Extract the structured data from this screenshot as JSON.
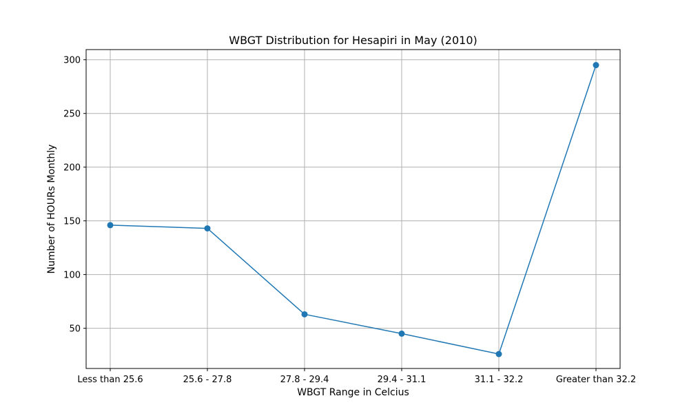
{
  "chart_data": {
    "type": "line",
    "title": "WBGT Distribution for Hesapiri in May (2010)",
    "xlabel": "WBGT Range in Celcius",
    "ylabel": "Number of HOURs Monthly",
    "categories": [
      "Less than 25.6",
      "25.6 - 27.8",
      "27.8 - 29.4",
      "29.4 - 31.1",
      "31.1 - 32.2",
      "Greater than 32.2"
    ],
    "series": [
      {
        "values": [
          146,
          143,
          63,
          45,
          26,
          295
        ],
        "color": "#1f77b4",
        "marker": "circle"
      }
    ],
    "yticks": [
      50,
      100,
      150,
      200,
      250,
      300
    ],
    "ylim": [
      12.55,
      309.45
    ],
    "grid": true,
    "legend": false
  }
}
